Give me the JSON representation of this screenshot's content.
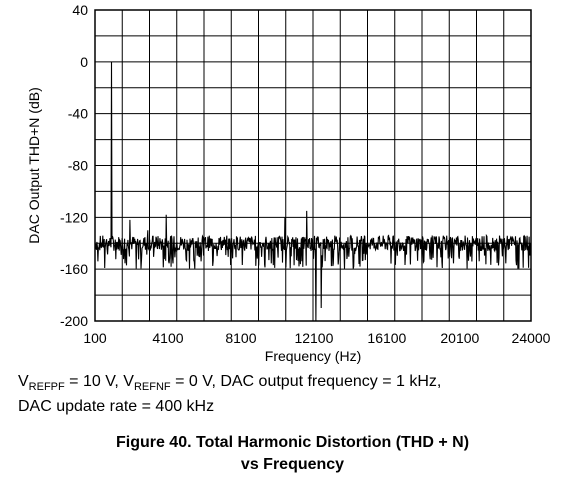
{
  "chart_data": {
    "type": "line",
    "title": "",
    "xlabel": "Frequency (Hz)",
    "ylabel": "DAC Output THD+N (dB)",
    "xlim": [
      100,
      24000
    ],
    "ylim": [
      -200,
      40
    ],
    "x_ticks": [
      "100",
      "4100",
      "8100",
      "12100",
      "16100",
      "20100",
      "24000"
    ],
    "x_tick_values": [
      100,
      4100,
      8100,
      12100,
      16100,
      20100,
      24000
    ],
    "y_ticks": [
      "40",
      "0",
      "-40",
      "-80",
      "-120",
      "-160",
      "-200"
    ],
    "y_tick_values": [
      40,
      0,
      -40,
      -80,
      -120,
      -160,
      -200
    ],
    "grid": true,
    "legend": "none",
    "series": [
      {
        "noise_floor_db": -140,
        "peaks": [
          {
            "x": 1000,
            "y": 0
          },
          {
            "x": 2000,
            "y": -122
          },
          {
            "x": 3000,
            "y": -130
          },
          {
            "x": 4000,
            "y": -118
          },
          {
            "x": 10500,
            "y": -120
          },
          {
            "x": 11700,
            "y": -115
          },
          {
            "x": 12200,
            "y": -200
          },
          {
            "x": 12500,
            "y": -190
          }
        ]
      }
    ]
  },
  "caption": {
    "v_ref_pf_prefix": "V",
    "v_ref_pf_sub": "REFPF",
    "v_ref_pf_rest": " = 10 V, V",
    "v_ref_nf_sub": "REFNF",
    "v_ref_nf_rest": " = 0 V, DAC output frequency = 1 kHz,",
    "line2": "DAC update rate = 400 kHz"
  },
  "figure": {
    "line1": "Figure 40. Total Harmonic Distortion (THD + N)",
    "line2": "vs Frequency"
  },
  "colors": {
    "trace": "#000000",
    "grid": "#000000",
    "background": "#ffffff"
  }
}
